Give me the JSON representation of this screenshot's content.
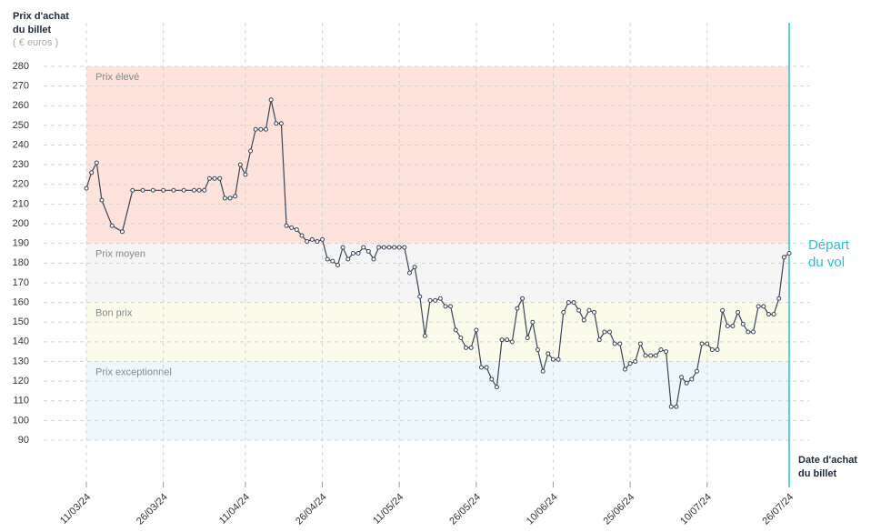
{
  "chart_data": {
    "type": "line",
    "y_label": [
      "Prix d'achat",
      "du billet"
    ],
    "y_unit": "( € euros )",
    "x_label": [
      "Date d'achat",
      "du billet"
    ],
    "departure_label": [
      "Départ",
      "du vol"
    ],
    "departure_date": "2024-07-26",
    "color": "#3a4557",
    "departure_color": "#2bbfd6",
    "grid": true,
    "ylim": [
      90,
      280
    ],
    "yticks": [
      90,
      100,
      110,
      120,
      130,
      140,
      150,
      160,
      170,
      180,
      190,
      200,
      210,
      220,
      230,
      240,
      250,
      260,
      270,
      280
    ],
    "xlim": [
      "2024-03-11",
      "2024-07-26"
    ],
    "xticks": [
      {
        "value": "2024-03-11",
        "label": "11/03/24"
      },
      {
        "value": "2024-03-26",
        "label": "26/03/24"
      },
      {
        "value": "2024-04-11",
        "label": "11/04/24"
      },
      {
        "value": "2024-04-26",
        "label": "26/04/24"
      },
      {
        "value": "2024-05-11",
        "label": "11/05/24"
      },
      {
        "value": "2024-05-26",
        "label": "26/05/24"
      },
      {
        "value": "2024-06-10",
        "label": "10/06/24"
      },
      {
        "value": "2024-06-25",
        "label": "25/06/24"
      },
      {
        "value": "2024-07-10",
        "label": "10/07/24"
      },
      {
        "value": "2024-07-26",
        "label": "26/07/24"
      }
    ],
    "bands": [
      {
        "label": "Prix élevé",
        "from": 190,
        "to": 280,
        "color": "#fde3dc"
      },
      {
        "label": "Prix moyen",
        "from": 160,
        "to": 190,
        "color": "#f5f5f5"
      },
      {
        "label": "Bon prix",
        "from": 130,
        "to": 160,
        "color": "#fbfbec"
      },
      {
        "label": "Prix exceptionnel",
        "from": 90,
        "to": 130,
        "color": "#eef8fc"
      }
    ],
    "x": [
      "2024-03-11",
      "2024-03-12",
      "2024-03-13",
      "2024-03-14",
      "2024-03-16",
      "2024-03-18",
      "2024-03-20",
      "2024-03-22",
      "2024-03-24",
      "2024-03-26",
      "2024-03-28",
      "2024-03-30",
      "2024-04-01",
      "2024-04-02",
      "2024-04-03",
      "2024-04-04",
      "2024-04-05",
      "2024-04-06",
      "2024-04-07",
      "2024-04-08",
      "2024-04-09",
      "2024-04-10",
      "2024-04-11",
      "2024-04-12",
      "2024-04-13",
      "2024-04-14",
      "2024-04-15",
      "2024-04-16",
      "2024-04-17",
      "2024-04-18",
      "2024-04-19",
      "2024-04-20",
      "2024-04-21",
      "2024-04-22",
      "2024-04-23",
      "2024-04-24",
      "2024-04-25",
      "2024-04-26",
      "2024-04-27",
      "2024-04-28",
      "2024-04-29",
      "2024-04-30",
      "2024-05-01",
      "2024-05-02",
      "2024-05-03",
      "2024-05-04",
      "2024-05-05",
      "2024-05-06",
      "2024-05-07",
      "2024-05-08",
      "2024-05-09",
      "2024-05-10",
      "2024-05-11",
      "2024-05-12",
      "2024-05-13",
      "2024-05-14",
      "2024-05-15",
      "2024-05-16",
      "2024-05-17",
      "2024-05-18",
      "2024-05-19",
      "2024-05-20",
      "2024-05-21",
      "2024-05-22",
      "2024-05-23",
      "2024-05-24",
      "2024-05-25",
      "2024-05-26",
      "2024-05-27",
      "2024-05-28",
      "2024-05-29",
      "2024-05-30",
      "2024-05-31",
      "2024-06-01",
      "2024-06-02",
      "2024-06-03",
      "2024-06-04",
      "2024-06-05",
      "2024-06-06",
      "2024-06-07",
      "2024-06-08",
      "2024-06-09",
      "2024-06-10",
      "2024-06-11",
      "2024-06-12",
      "2024-06-13",
      "2024-06-14",
      "2024-06-15",
      "2024-06-16",
      "2024-06-17",
      "2024-06-18",
      "2024-06-19",
      "2024-06-20",
      "2024-06-21",
      "2024-06-22",
      "2024-06-23",
      "2024-06-24",
      "2024-06-25",
      "2024-06-26",
      "2024-06-27",
      "2024-06-28",
      "2024-06-29",
      "2024-06-30",
      "2024-07-01",
      "2024-07-02",
      "2024-07-03",
      "2024-07-04",
      "2024-07-05",
      "2024-07-06",
      "2024-07-07",
      "2024-07-08",
      "2024-07-09",
      "2024-07-10",
      "2024-07-11",
      "2024-07-12",
      "2024-07-13",
      "2024-07-14",
      "2024-07-15",
      "2024-07-16",
      "2024-07-17",
      "2024-07-18",
      "2024-07-19",
      "2024-07-20",
      "2024-07-21",
      "2024-07-22",
      "2024-07-23",
      "2024-07-24",
      "2024-07-25",
      "2024-07-26"
    ],
    "values": [
      218,
      226,
      231,
      212,
      199,
      196,
      217,
      217,
      217,
      217,
      217,
      217,
      217,
      217,
      217,
      223,
      223,
      223,
      213,
      213,
      214,
      230,
      225,
      237,
      248,
      248,
      248,
      263,
      251,
      251,
      199,
      198,
      197,
      194,
      191,
      192,
      191,
      192,
      182,
      181,
      179,
      188,
      182,
      185,
      185,
      188,
      186,
      182,
      188,
      188,
      188,
      188,
      188,
      188,
      175,
      178,
      163,
      143,
      161,
      161,
      162,
      158,
      158,
      146,
      142,
      137,
      137,
      146,
      127,
      127,
      121,
      117,
      141,
      141,
      140,
      157,
      162,
      142,
      150,
      136,
      125,
      134,
      131,
      131,
      155,
      160,
      160,
      156,
      151,
      156,
      155,
      141,
      145,
      145,
      139,
      139,
      126,
      129,
      130,
      139,
      133,
      133,
      133,
      136,
      135,
      107,
      107,
      122,
      119,
      121,
      125,
      139,
      139,
      136,
      136,
      156,
      148,
      148,
      155,
      149,
      145,
      145,
      158,
      158,
      154,
      154,
      162,
      183,
      185
    ]
  }
}
